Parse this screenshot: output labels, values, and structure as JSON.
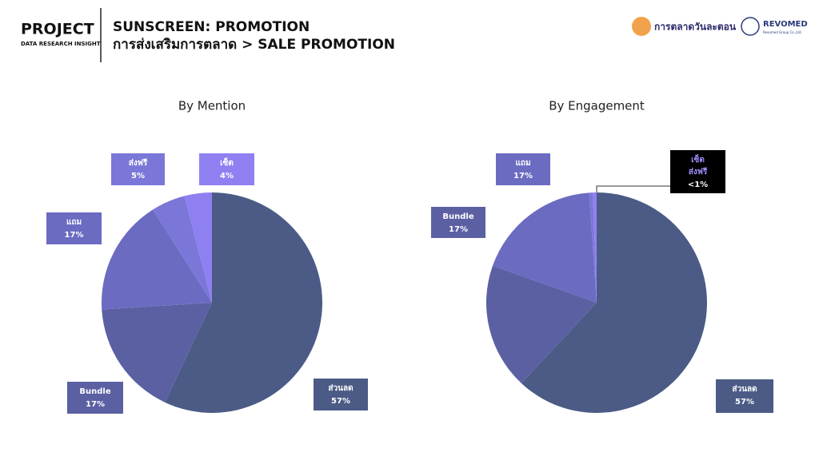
{
  "header": {
    "brand": "PROJECT",
    "brand_sub": "DATA RESEARCH INSIGHT",
    "title": "SUNSCREEN: PROMOTION",
    "subtitle": "การส่งเสริมการตลาด > SALE PROMOTION",
    "logo1": "การตลาดวันละตอน",
    "logo2": "REVOMED",
    "logo2_sub": "Revomed Group Co.,Ltd."
  },
  "chart_data": [
    {
      "type": "pie",
      "title": "By Mention",
      "categories": [
        "ส่วนลด",
        "Bundle",
        "แถม",
        "ส่งฟรี",
        "เซ็ต"
      ],
      "values": [
        57,
        17,
        17,
        5,
        4
      ],
      "value_labels": [
        "57%",
        "17%",
        "17%",
        "5%",
        "4%"
      ],
      "colors": [
        "#4b5b86",
        "#5a60a2",
        "#6b6bc2",
        "#7b77d8",
        "#8f80f2"
      ]
    },
    {
      "type": "pie",
      "title": "By Engagement",
      "categories": [
        "ส่วนลด",
        "Bundle",
        "แถม",
        "เซ็ต",
        "ส่งฟรี"
      ],
      "values": [
        57,
        17,
        17,
        0.5,
        0.5
      ],
      "value_labels": [
        "57%",
        "17%",
        "17%",
        "<1%",
        null
      ],
      "colors": [
        "#4b5b86",
        "#5a60a2",
        "#6b6bc2",
        "#7b77d8",
        "#8f80f2"
      ]
    }
  ]
}
